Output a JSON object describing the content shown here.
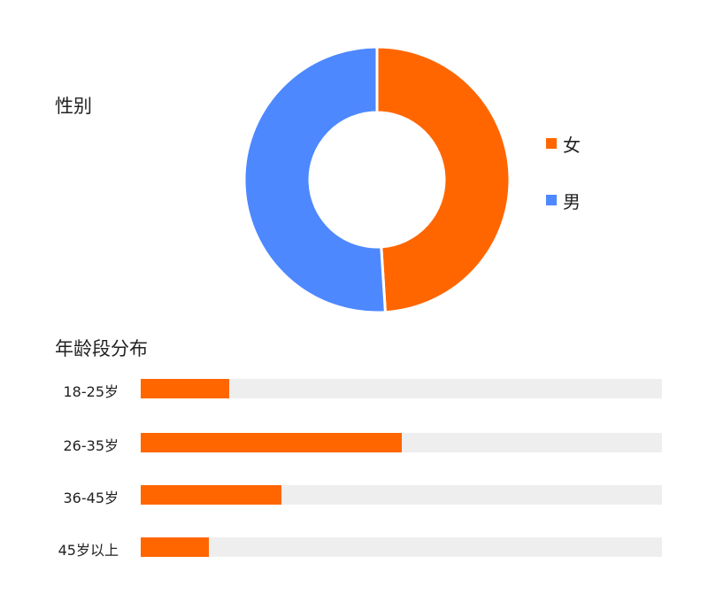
{
  "gender": {
    "title": "性别",
    "chart_data": {
      "type": "pie",
      "donut": true,
      "categories": [
        "女",
        "男"
      ],
      "values": [
        49,
        51
      ],
      "colors": [
        "#FF6600",
        "#4E88FF"
      ],
      "legend": "right"
    }
  },
  "age": {
    "title": "年龄段分布",
    "chart_data": {
      "type": "bar",
      "orientation": "horizontal",
      "categories": [
        "18-25岁",
        "26-35岁",
        "36-45岁",
        "45岁以上"
      ],
      "values": [
        17,
        50,
        27,
        13
      ],
      "xlim": [
        0,
        100
      ],
      "colors": {
        "fill": "#FF6600",
        "track": "#EEEEEE"
      }
    }
  }
}
